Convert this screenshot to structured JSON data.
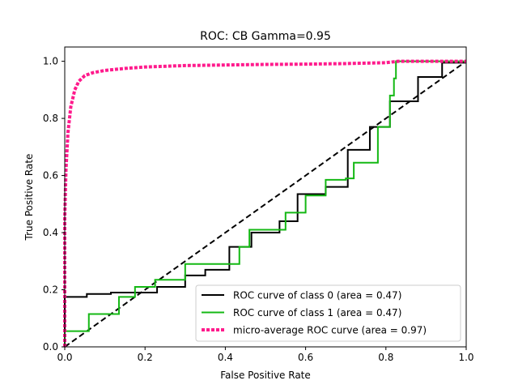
{
  "chart_data": {
    "type": "line",
    "title": "ROC: CB Gamma=0.95",
    "xlabel": "False Positive Rate",
    "ylabel": "True Positive Rate",
    "xlim": [
      0.0,
      1.0
    ],
    "ylim": [
      0.0,
      1.05
    ],
    "x_ticks": [
      0.0,
      0.2,
      0.4,
      0.6,
      0.8,
      1.0
    ],
    "x_tick_labels": [
      "0.0",
      "0.2",
      "0.4",
      "0.6",
      "0.8",
      "1.0"
    ],
    "y_ticks": [
      0.0,
      0.2,
      0.4,
      0.6,
      0.8,
      1.0
    ],
    "y_tick_labels": [
      "0.0",
      "0.2",
      "0.4",
      "0.6",
      "0.8",
      "1.0"
    ],
    "grid": false,
    "legend_position": "lower-right",
    "series": [
      {
        "name": "ROC curve of class 0 (area = 0.47)",
        "color": "#000000",
        "style": "solid",
        "x": [
          0.0,
          0.0,
          0.055,
          0.055,
          0.115,
          0.115,
          0.23,
          0.23,
          0.3,
          0.3,
          0.35,
          0.35,
          0.41,
          0.41,
          0.465,
          0.465,
          0.535,
          0.535,
          0.58,
          0.58,
          0.65,
          0.65,
          0.705,
          0.705,
          0.76,
          0.76,
          0.81,
          0.81,
          0.88,
          0.88,
          0.94,
          0.94,
          1.0
        ],
        "y": [
          0.0,
          0.175,
          0.175,
          0.185,
          0.185,
          0.19,
          0.19,
          0.21,
          0.21,
          0.25,
          0.25,
          0.27,
          0.27,
          0.35,
          0.35,
          0.4,
          0.4,
          0.44,
          0.44,
          0.535,
          0.535,
          0.56,
          0.56,
          0.69,
          0.69,
          0.77,
          0.77,
          0.86,
          0.86,
          0.945,
          0.945,
          0.995,
          0.995
        ]
      },
      {
        "name": "ROC curve of class 1 (area = 0.47)",
        "color": "#14b814",
        "style": "solid",
        "x": [
          0.0,
          0.0,
          0.06,
          0.06,
          0.135,
          0.135,
          0.175,
          0.175,
          0.225,
          0.225,
          0.3,
          0.3,
          0.435,
          0.435,
          0.46,
          0.46,
          0.55,
          0.55,
          0.6,
          0.6,
          0.65,
          0.65,
          0.7,
          0.7,
          0.72,
          0.72,
          0.78,
          0.78,
          0.81,
          0.81,
          0.82,
          0.82,
          0.825,
          0.825,
          1.0
        ],
        "y": [
          0.0,
          0.055,
          0.055,
          0.115,
          0.115,
          0.175,
          0.175,
          0.21,
          0.21,
          0.235,
          0.235,
          0.29,
          0.29,
          0.35,
          0.35,
          0.41,
          0.41,
          0.47,
          0.47,
          0.53,
          0.53,
          0.585,
          0.585,
          0.59,
          0.59,
          0.645,
          0.645,
          0.77,
          0.77,
          0.88,
          0.88,
          0.94,
          0.94,
          1.0,
          1.0
        ]
      },
      {
        "name": "micro-average ROC curve (area = 0.97)",
        "color": "#ff1a8c",
        "style": "dotted",
        "x": [
          0.0,
          0.0,
          0.003,
          0.008,
          0.015,
          0.025,
          0.035,
          0.05,
          0.07,
          0.1,
          0.15,
          0.2,
          0.3,
          0.4,
          0.5,
          0.6,
          0.7,
          0.8,
          0.83,
          0.9,
          1.0
        ],
        "y": [
          0.0,
          0.45,
          0.62,
          0.75,
          0.84,
          0.9,
          0.93,
          0.95,
          0.96,
          0.968,
          0.975,
          0.98,
          0.985,
          0.987,
          0.989,
          0.99,
          0.992,
          0.995,
          1.0,
          1.0,
          1.0
        ]
      }
    ],
    "reference_line": {
      "x": [
        0.0,
        1.0
      ],
      "y": [
        0.0,
        1.0
      ],
      "color": "#000000",
      "style": "dashed"
    }
  }
}
